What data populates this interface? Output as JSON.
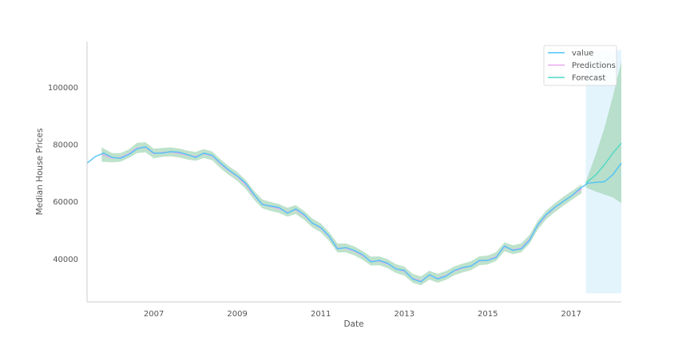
{
  "chart_data": {
    "type": "line",
    "xlabel": "Date",
    "ylabel": "Median House Prices",
    "x_ticks": [
      "2007",
      "2009",
      "2011",
      "2013",
      "2015",
      "2017"
    ],
    "y_ticks": [
      "40000",
      "60000",
      "80000",
      "100000"
    ],
    "xlim": [
      2005.4,
      2018.2
    ],
    "ylim": [
      25000,
      116000
    ],
    "grid": false,
    "legend_position": "top-right",
    "forecast_shade": {
      "x_start": 2017.35,
      "x_end": 2018.2,
      "y_start": 28000,
      "y_end": 113000,
      "color": "#e3f4fd"
    },
    "series": [
      {
        "name": "value",
        "color": "#4fc3f7",
        "x": [
          2005.4,
          2005.6,
          2005.8,
          2006.0,
          2006.2,
          2006.4,
          2006.6,
          2006.8,
          2007.0,
          2007.2,
          2007.4,
          2007.6,
          2007.8,
          2008.0,
          2008.2,
          2008.4,
          2008.6,
          2008.8,
          2009.0,
          2009.2,
          2009.4,
          2009.6,
          2009.8,
          2010.0,
          2010.2,
          2010.4,
          2010.6,
          2010.8,
          2011.0,
          2011.2,
          2011.4,
          2011.6,
          2011.8,
          2012.0,
          2012.2,
          2012.4,
          2012.6,
          2012.8,
          2013.0,
          2013.2,
          2013.4,
          2013.6,
          2013.8,
          2014.0,
          2014.2,
          2014.4,
          2014.6,
          2014.8,
          2015.0,
          2015.2,
          2015.4,
          2015.6,
          2015.8,
          2016.0,
          2016.2,
          2016.4,
          2016.6,
          2016.8,
          2017.0,
          2017.2,
          2017.4,
          2017.6,
          2017.8,
          2018.0,
          2018.2
        ],
        "values": [
          73500,
          75800,
          77000,
          75500,
          75200,
          76500,
          78500,
          79200,
          77000,
          77000,
          77500,
          77300,
          76500,
          75500,
          77000,
          76200,
          73500,
          71000,
          69000,
          66500,
          62500,
          59000,
          58500,
          58000,
          56000,
          57500,
          55500,
          52500,
          51000,
          48000,
          43500,
          44000,
          43000,
          41500,
          39000,
          39500,
          38500,
          36500,
          36000,
          33000,
          32000,
          34500,
          33000,
          34000,
          36000,
          37000,
          37500,
          39500,
          39500,
          40500,
          44500,
          43000,
          43500,
          46500,
          52000,
          55500,
          58000,
          60000,
          62000,
          64500,
          66500,
          66800,
          67000,
          69500,
          73500
        ]
      },
      {
        "name": "Predictions",
        "color": "#e9a7ef",
        "x": [
          2005.75,
          2006.0,
          2006.2,
          2006.4,
          2006.6,
          2006.8,
          2007.0,
          2007.2,
          2007.4,
          2007.6,
          2007.8,
          2008.0,
          2008.2,
          2008.4,
          2008.6,
          2008.8,
          2009.0,
          2009.2,
          2009.4,
          2009.6,
          2009.8,
          2010.0,
          2010.2,
          2010.4,
          2010.6,
          2010.8,
          2011.0,
          2011.2,
          2011.4,
          2011.6,
          2011.8,
          2012.0,
          2012.2,
          2012.4,
          2012.6,
          2012.8,
          2013.0,
          2013.2,
          2013.4,
          2013.6,
          2013.8,
          2014.0,
          2014.2,
          2014.4,
          2014.6,
          2014.8,
          2015.0,
          2015.2,
          2015.4,
          2015.6,
          2015.8,
          2016.0,
          2016.2,
          2016.4,
          2016.6,
          2016.8,
          2017.0,
          2017.25
        ],
        "values": [
          76500,
          75300,
          75400,
          76800,
          78800,
          79000,
          76800,
          77200,
          77400,
          77000,
          76300,
          75800,
          76800,
          76000,
          73200,
          70800,
          68800,
          66000,
          62200,
          59200,
          58300,
          57600,
          56300,
          57200,
          55200,
          52500,
          50800,
          47800,
          43800,
          43800,
          42800,
          41200,
          39200,
          39300,
          38300,
          36600,
          35700,
          33200,
          32300,
          34300,
          33200,
          34200,
          35800,
          36800,
          37600,
          39300,
          39600,
          40800,
          44200,
          43200,
          43800,
          46800,
          51800,
          55300,
          57800,
          60000,
          62000,
          64500
        ]
      },
      {
        "name": "Forecast",
        "color": "#4dd9c6",
        "x": [
          2017.35,
          2017.6,
          2017.8,
          2018.0,
          2018.2
        ],
        "values": [
          66500,
          69500,
          73000,
          77000,
          80500
        ]
      }
    ],
    "confidence_band": {
      "color": "#a8d8b9",
      "x": [
        2005.75,
        2006.0,
        2006.2,
        2006.4,
        2006.6,
        2006.8,
        2007.0,
        2007.2,
        2007.4,
        2007.6,
        2007.8,
        2008.0,
        2008.2,
        2008.4,
        2008.6,
        2008.8,
        2009.0,
        2009.2,
        2009.4,
        2009.6,
        2009.8,
        2010.0,
        2010.2,
        2010.4,
        2010.6,
        2010.8,
        2011.0,
        2011.2,
        2011.4,
        2011.6,
        2011.8,
        2012.0,
        2012.2,
        2012.4,
        2012.6,
        2012.8,
        2013.0,
        2013.2,
        2013.4,
        2013.6,
        2013.8,
        2014.0,
        2014.2,
        2014.4,
        2014.6,
        2014.8,
        2015.0,
        2015.2,
        2015.4,
        2015.6,
        2015.8,
        2016.0,
        2016.2,
        2016.4,
        2016.6,
        2016.8,
        2017.0,
        2017.25
      ],
      "lower": [
        74000,
        73800,
        74000,
        75300,
        77000,
        77300,
        75200,
        75700,
        75900,
        75500,
        74800,
        74300,
        75300,
        74500,
        71700,
        69300,
        67300,
        64500,
        60700,
        57700,
        56800,
        56100,
        54800,
        55700,
        53700,
        51000,
        49300,
        46300,
        42300,
        42300,
        41300,
        39700,
        37700,
        37800,
        36800,
        35100,
        34200,
        31700,
        30800,
        32800,
        31700,
        32700,
        34300,
        35300,
        36100,
        37800,
        38100,
        39300,
        42700,
        41700,
        42300,
        45300,
        50300,
        53800,
        56300,
        58500,
        60500,
        63000
      ],
      "upper": [
        79000,
        77000,
        77000,
        78300,
        80600,
        80800,
        78500,
        78800,
        79000,
        78600,
        77900,
        77400,
        78400,
        77600,
        74800,
        72400,
        70400,
        67600,
        63800,
        60800,
        59900,
        59200,
        57900,
        58800,
        56800,
        54100,
        52400,
        49400,
        45400,
        45400,
        44400,
        42800,
        40800,
        40900,
        39900,
        38200,
        37300,
        34800,
        33900,
        35900,
        34800,
        35800,
        37400,
        38400,
        39200,
        40900,
        41200,
        42400,
        45800,
        44800,
        45400,
        48400,
        53400,
        56900,
        59400,
        61600,
        63600,
        66100
      ]
    },
    "forecast_band": {
      "color": "#a8d8b9",
      "x": [
        2017.35,
        2017.6,
        2017.8,
        2018.0,
        2018.2
      ],
      "lower": [
        65000,
        63500,
        62500,
        61500,
        59500
      ],
      "upper": [
        67000,
        77000,
        86000,
        97000,
        109000
      ]
    }
  }
}
